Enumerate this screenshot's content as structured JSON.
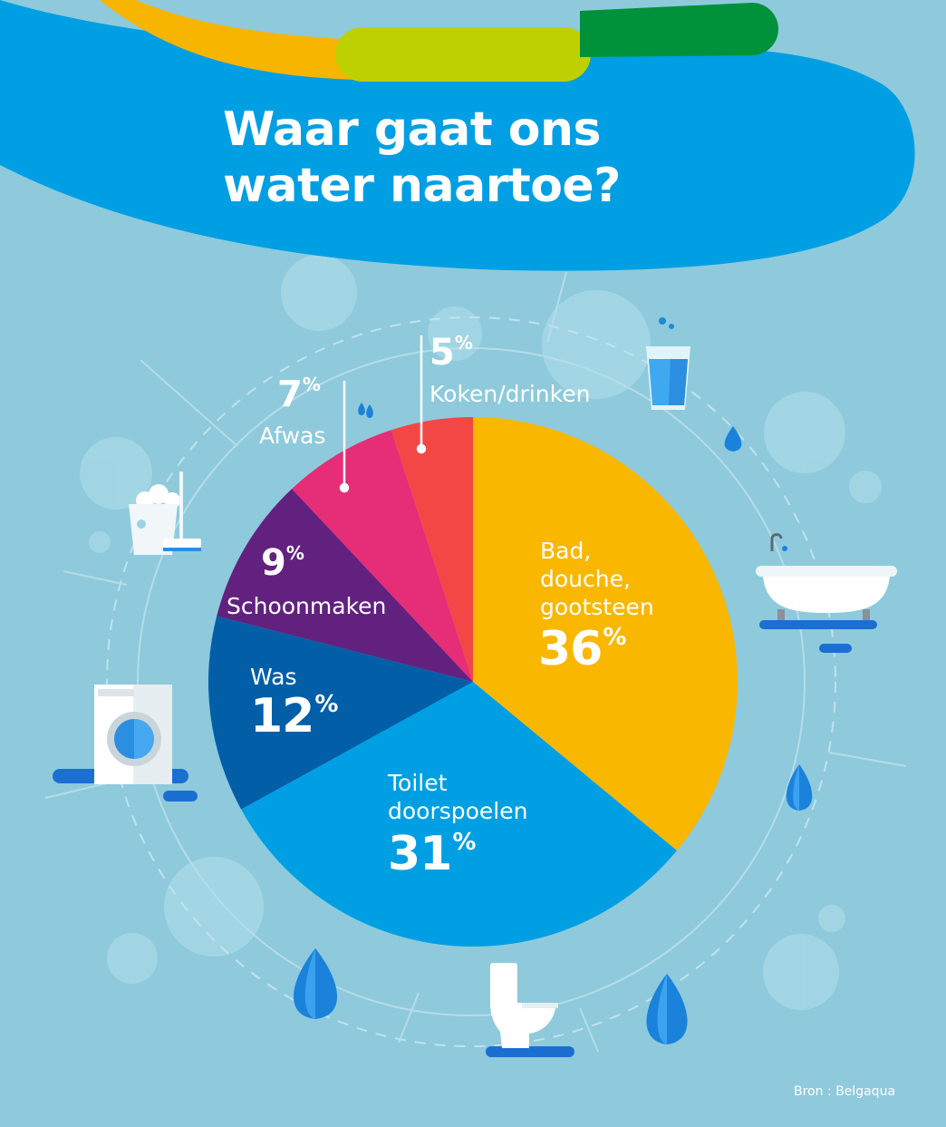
{
  "title": [
    "Waar gaat ons",
    "water naartoe?"
  ],
  "source": "Bron : Belgaqua",
  "colors": {
    "background": "#8ecadc",
    "banner": "#009fe3",
    "stripe_yellow": "#f7b500",
    "stripe_lime": "#bed000",
    "stripe_green": "#00913b"
  },
  "chart_data": {
    "type": "pie",
    "title": "Waar gaat ons water naartoe?",
    "unit": "%",
    "slices": [
      {
        "name": "Bad, douche, gootsteen",
        "value": 36,
        "label": "36",
        "color": "#f9b700",
        "icon": "bathtub-icon"
      },
      {
        "name": "Toilet doorspoelen",
        "value": 31,
        "label": "31",
        "color": "#009fe3",
        "icon": "toilet-icon"
      },
      {
        "name": "Was",
        "value": 12,
        "label": "12",
        "color": "#025fa7",
        "icon": "washing-machine-icon"
      },
      {
        "name": "Schoonmaken",
        "value": 9,
        "label": "9",
        "color": "#62217f",
        "icon": "bucket-mop-icon"
      },
      {
        "name": "Afwas",
        "value": 7,
        "label": "7",
        "color": "#e52d78",
        "icon": "water-drops-icon"
      },
      {
        "name": "Koken/drinken",
        "value": 5,
        "label": "5",
        "color": "#f34746",
        "icon": "water-glass-icon"
      }
    ]
  }
}
